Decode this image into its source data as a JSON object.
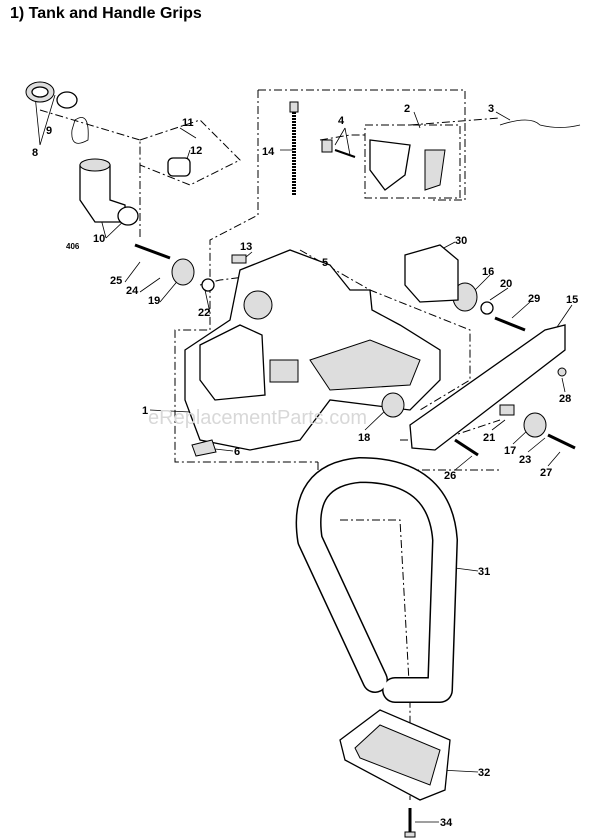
{
  "header": {
    "title": "1) Tank and Handle Grips"
  },
  "watermark": "eReplacementParts.com",
  "labels": [
    "8",
    "9",
    "11",
    "12",
    "14",
    "4",
    "2",
    "3",
    "5",
    "13",
    "10",
    "406",
    "25",
    "24",
    "19",
    "22",
    "30",
    "16",
    "20",
    "29",
    "15",
    "28",
    "1",
    "6",
    "18",
    "21",
    "17",
    "23",
    "26",
    "27",
    "31",
    "32",
    "34"
  ]
}
